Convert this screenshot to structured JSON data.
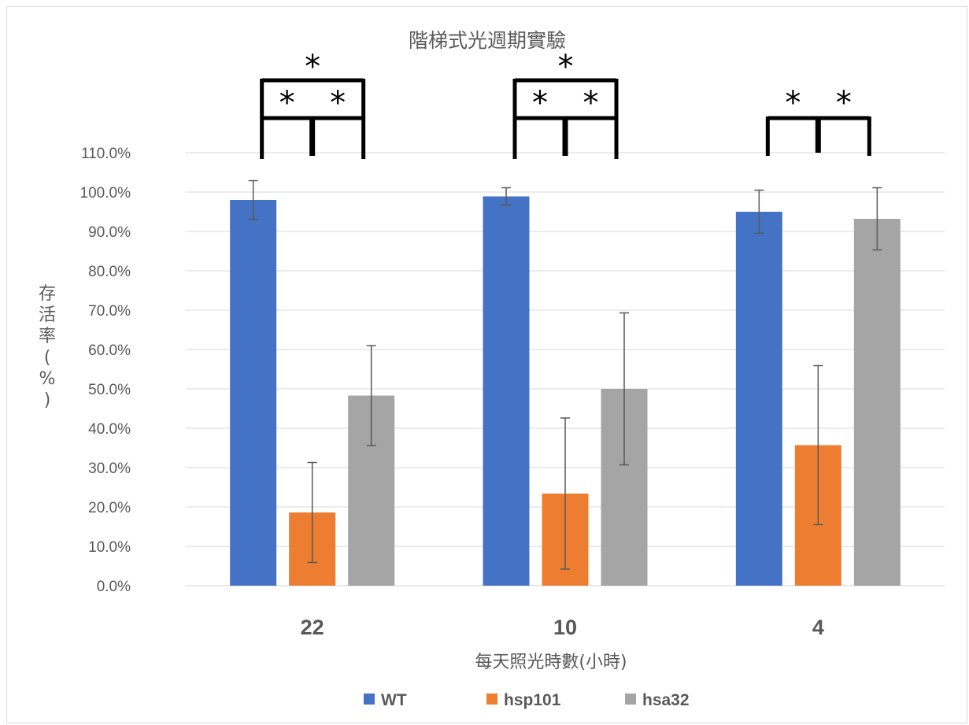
{
  "chart_data": {
    "type": "bar",
    "title": "階梯式光週期實驗",
    "xlabel": "每天照光時數(小時)",
    "ylabel_chars": [
      "存",
      "活",
      "率",
      "(",
      "%",
      ")"
    ],
    "categories": [
      "22",
      "10",
      "4"
    ],
    "ylim": [
      0,
      1.1
    ],
    "yticks": [
      "0.0%",
      "10.0%",
      "20.0%",
      "30.0%",
      "40.0%",
      "50.0%",
      "60.0%",
      "70.0%",
      "80.0%",
      "90.0%",
      "100.0%",
      "110.0%"
    ],
    "grid": true,
    "legend_position": "bottom",
    "series": [
      {
        "name": "WT",
        "color": "#4472C4",
        "values": [
          0.98,
          0.989,
          0.95
        ],
        "errors": [
          0.049,
          0.022,
          0.055
        ]
      },
      {
        "name": "hsp101",
        "color": "#ED7D31",
        "values": [
          0.186,
          0.234,
          0.357
        ],
        "errors": [
          0.127,
          0.192,
          0.202
        ]
      },
      {
        "name": "hsa32",
        "color": "#A5A5A5",
        "values": [
          0.483,
          0.5,
          0.932
        ],
        "errors": [
          0.127,
          0.193,
          0.079
        ]
      }
    ],
    "significance": [
      {
        "category": "22",
        "pairs": [
          "WT-hsp101",
          "hsp101-hsa32",
          "WT-hsa32"
        ],
        "marker": "*"
      },
      {
        "category": "10",
        "pairs": [
          "WT-hsp101",
          "hsp101-hsa32",
          "WT-hsa32"
        ],
        "marker": "*"
      },
      {
        "category": "4",
        "pairs": [
          "WT-hsp101",
          "hsp101-hsa32"
        ],
        "marker": "*"
      }
    ]
  }
}
